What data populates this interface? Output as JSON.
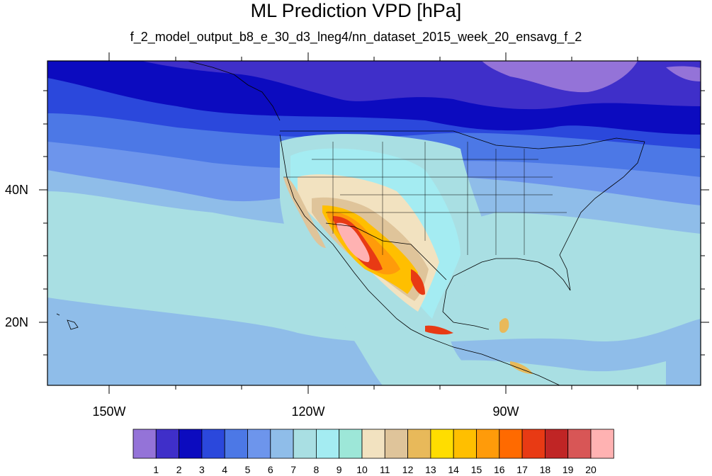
{
  "title": "ML Prediction VPD [hPa]",
  "subtitle": "f_2_model_output_b8_e_30_d3_lneg4/nn_dataset_2015_week_20_ensavg_f_2",
  "map": {
    "lon_range": [
      -165,
      -65
    ],
    "lat_range": [
      10,
      59
    ],
    "lat_labels": [
      "40N",
      "20N"
    ],
    "lon_labels": [
      "150W",
      "120W",
      "90W"
    ]
  },
  "colorbar": {
    "colors": [
      "#9473d8",
      "#3f2fc9",
      "#0c0bbf",
      "#2b48dc",
      "#4c78e6",
      "#6d95ec",
      "#8fbde9",
      "#a9dfe3",
      "#a4ecf2",
      "#9de7d8",
      "#f2e2c0",
      "#dfc49a",
      "#e8b95a",
      "#ffdd00",
      "#ffbf00",
      "#ff9b0a",
      "#ff6a00",
      "#e83a14",
      "#c02525",
      "#d85656",
      "#ffb2b2"
    ],
    "labels": [
      "1",
      "2",
      "3",
      "4",
      "5",
      "6",
      "7",
      "8",
      "9",
      "10",
      "11",
      "12",
      "13",
      "14",
      "15",
      "16",
      "17",
      "18",
      "19",
      "20"
    ]
  }
}
